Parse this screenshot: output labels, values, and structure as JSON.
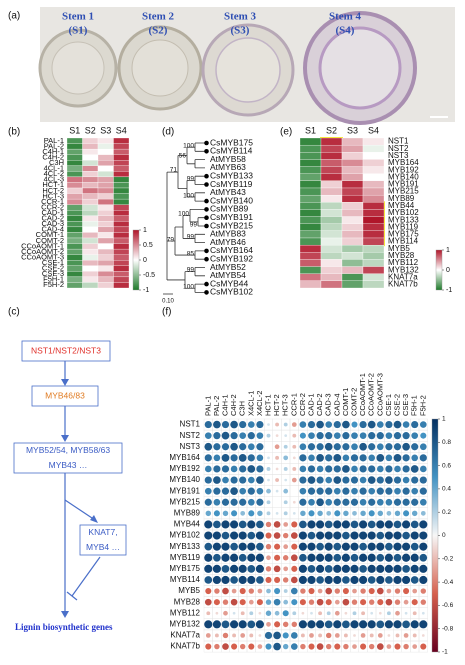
{
  "panel_labels": [
    "(a)",
    "(b)",
    "(c)",
    "(d)",
    "(e)",
    "(f)"
  ],
  "panel_a": {
    "stems": [
      {
        "name": "Stem 1",
        "code": "(S1)"
      },
      {
        "name": "Stem 2",
        "code": "(S2)"
      },
      {
        "name": "Stem 3",
        "code": "(S3)"
      },
      {
        "name": "Stem 4",
        "code": "(S4)"
      }
    ]
  },
  "tree": {
    "leaves": [
      {
        "name": "CsMYB175",
        "dot": true
      },
      {
        "name": "CsMYB114",
        "dot": true
      },
      {
        "name": "AtMYB58",
        "dot": false
      },
      {
        "name": "AtMYB63",
        "dot": false
      },
      {
        "name": "CsMYB133",
        "dot": true
      },
      {
        "name": "CsMYB119",
        "dot": true
      },
      {
        "name": "AtMYB43",
        "dot": false
      },
      {
        "name": "CsMYB140",
        "dot": true
      },
      {
        "name": "CsMYB89",
        "dot": true
      },
      {
        "name": "CsMYB191",
        "dot": true
      },
      {
        "name": "CsMYB215",
        "dot": true
      },
      {
        "name": "AtMYB83",
        "dot": false
      },
      {
        "name": "AtMYB46",
        "dot": false
      },
      {
        "name": "CsMYB164",
        "dot": true
      },
      {
        "name": "CsMYB192",
        "dot": true
      },
      {
        "name": "AtMYB52",
        "dot": false
      },
      {
        "name": "AtMYB54",
        "dot": false
      },
      {
        "name": "CsMYB44",
        "dot": true
      },
      {
        "name": "CsMYB102",
        "dot": true
      }
    ],
    "bootstrap": [
      "100",
      "56",
      "71",
      "99",
      "100",
      "100",
      "99",
      "99",
      "85",
      "79",
      "99",
      "100"
    ],
    "scale": "0.10"
  },
  "pathway": {
    "nodes": [
      {
        "lines": [
          "NST1/NST2/NST3"
        ],
        "color": "#e0302a"
      },
      {
        "lines": [
          "MYB46/83"
        ],
        "color": "#e07b22"
      },
      {
        "lines": [
          "MYB52/54, MYB58/63",
          "MYB43 …"
        ],
        "color": "#3a5bc4"
      },
      {
        "lines": [
          "KNAT7,",
          "MYB4 …"
        ],
        "color": "#3a5bc4"
      },
      {
        "lines": [
          "Lignin biosynthetic genes"
        ],
        "color": "#2233cc"
      }
    ]
  },
  "chart_data": [
    {
      "type": "heatmap",
      "columns": [
        "S1",
        "S2",
        "S3",
        "S4"
      ],
      "rows": [
        "PAL-1",
        "PAL-2",
        "C4H-1",
        "C4H-2",
        "C3H",
        "4CL-1",
        "4CL-2",
        "4CL-3",
        "HCT-1",
        "HCT-2",
        "HCT-3",
        "CCR-1",
        "CCR-2",
        "CAD-1",
        "CAD-2",
        "CAD-3",
        "CAD-4",
        "COMT-1",
        "COMT-2",
        "CCoAOMT-1",
        "CCoAOMT-2",
        "CCoAOMT-3",
        "CSE-1",
        "CSE-2",
        "CSE-3",
        "F5H-1",
        "F5H-2"
      ],
      "values": [
        [
          -0.8,
          0.2,
          0.1,
          0.9
        ],
        [
          -0.9,
          0.3,
          -0.1,
          0.8
        ],
        [
          -0.7,
          0.1,
          0.0,
          0.7
        ],
        [
          -0.8,
          0.0,
          0.3,
          0.9
        ],
        [
          -0.9,
          -0.2,
          0.4,
          0.8
        ],
        [
          -0.6,
          0.5,
          0.0,
          0.7
        ],
        [
          -0.8,
          0.2,
          -0.2,
          0.9
        ],
        [
          0.6,
          0.5,
          0.4,
          -0.9
        ],
        [
          0.5,
          0.3,
          0.4,
          -0.8
        ],
        [
          0.2,
          0.6,
          0.5,
          -0.9
        ],
        [
          0.4,
          0.3,
          0.2,
          -0.8
        ],
        [
          0.5,
          0.2,
          0.6,
          -0.9
        ],
        [
          -0.7,
          -0.2,
          0.1,
          0.8
        ],
        [
          -0.8,
          -0.3,
          0.2,
          0.9
        ],
        [
          -0.9,
          0.1,
          0.3,
          0.7
        ],
        [
          -0.8,
          -0.1,
          0.2,
          0.9
        ],
        [
          -0.9,
          0.0,
          0.4,
          0.8
        ],
        [
          -0.7,
          0.3,
          0.1,
          0.9
        ],
        [
          -0.6,
          -0.2,
          0.4,
          0.7
        ],
        [
          -0.8,
          0.2,
          0.0,
          0.9
        ],
        [
          -0.7,
          0.1,
          0.3,
          0.8
        ],
        [
          -0.9,
          -0.1,
          0.2,
          0.7
        ],
        [
          -0.8,
          0.3,
          0.4,
          0.8
        ],
        [
          -0.7,
          0.0,
          0.1,
          0.9
        ],
        [
          -0.9,
          0.2,
          0.5,
          0.7
        ],
        [
          -0.6,
          0.1,
          0.3,
          0.8
        ],
        [
          -0.7,
          -0.3,
          0.2,
          0.9
        ]
      ],
      "clim": [
        -1,
        1
      ],
      "cticks": [
        -1,
        -0.5,
        0,
        0.5,
        1
      ],
      "colors": [
        "#1e7a2a",
        "#ffffff",
        "#b0162a"
      ]
    },
    {
      "type": "heatmap",
      "columns": [
        "S1",
        "S2",
        "S3",
        "S4"
      ],
      "rows": [
        "NST1",
        "NST2",
        "NST3",
        "MYB164",
        "MYB192",
        "MYB140",
        "MYB191",
        "MYB215",
        "MYB89",
        "MYB44",
        "MYB102",
        "MYB133",
        "MYB119",
        "MYB175",
        "MYB114",
        "MYB5",
        "MYB28",
        "MYB112",
        "MYB132",
        "KNAT7a",
        "KNAT7b"
      ],
      "values": [
        [
          -0.9,
          0.9,
          0.3,
          0.1
        ],
        [
          -0.8,
          0.8,
          0.4,
          -0.1
        ],
        [
          -0.8,
          0.9,
          0.2,
          0.0
        ],
        [
          -0.9,
          0.7,
          0.5,
          0.2
        ],
        [
          -0.8,
          0.8,
          0.3,
          0.1
        ],
        [
          -0.7,
          0.9,
          0.4,
          0.0
        ],
        [
          -0.9,
          0.2,
          0.9,
          0.3
        ],
        [
          -0.8,
          0.3,
          0.8,
          0.4
        ],
        [
          -0.7,
          0.1,
          0.9,
          0.5
        ],
        [
          -0.8,
          -0.3,
          0.2,
          0.9
        ],
        [
          -0.9,
          -0.2,
          0.3,
          0.9
        ],
        [
          -0.8,
          -0.4,
          0.1,
          1.0
        ],
        [
          -0.9,
          -0.3,
          0.2,
          0.9
        ],
        [
          -0.7,
          -0.2,
          0.3,
          0.9
        ],
        [
          -0.8,
          -0.1,
          0.2,
          0.8
        ],
        [
          0.9,
          -0.2,
          -0.4,
          -0.3
        ],
        [
          0.8,
          -0.3,
          -0.2,
          -0.4
        ],
        [
          0.7,
          0.1,
          -0.5,
          -0.3
        ],
        [
          -0.8,
          0.2,
          0.3,
          0.8
        ],
        [
          0.6,
          0.3,
          -0.8,
          -0.2
        ],
        [
          0.3,
          0.6,
          -0.7,
          -0.3
        ]
      ],
      "clim": [
        -1,
        1
      ],
      "cticks": [
        -1,
        0,
        1
      ],
      "colors": [
        "#1e7a2a",
        "#ffffff",
        "#b0162a"
      ]
    },
    {
      "type": "corrplot",
      "columns": [
        "PAL-1",
        "PAL-2",
        "C4H-1",
        "C4H-2",
        "C3H",
        "X4CL-1",
        "X4CL-2",
        "HCT-1",
        "HCT-2",
        "HCT-3",
        "CCR-1",
        "CCR-2",
        "CAD-1",
        "CAD-2",
        "CAD-3",
        "CAD-4",
        "COMT-1",
        "COMT-2",
        "CCoAOMT-1",
        "CCoAOMT-2",
        "CCoAOMT-3",
        "CSE-1",
        "CSE-2",
        "CSE-3",
        "F5H-1",
        "F5H-2"
      ],
      "rows": [
        "NST1",
        "NST2",
        "NST3",
        "MYB164",
        "MYB192",
        "MYB140",
        "MYB191",
        "MYB215",
        "MYB89",
        "MYB44",
        "MYB102",
        "MYB133",
        "MYB119",
        "MYB175",
        "MYB114",
        "MYB5",
        "MYB28",
        "MYB112",
        "MYB132",
        "KNAT7a",
        "KNAT7b"
      ],
      "values": [
        [
          0.7,
          0.8,
          0.7,
          0.8,
          0.7,
          0.6,
          0.7,
          0.1,
          -0.2,
          0.2,
          -0.3,
          0.6,
          0.7,
          0.8,
          0.6,
          0.7,
          0.8,
          0.5,
          0.7,
          0.8,
          0.6,
          0.7,
          0.8,
          0.6,
          0.7,
          0.6
        ],
        [
          0.6,
          0.7,
          0.8,
          0.7,
          0.6,
          0.7,
          0.6,
          0.2,
          -0.1,
          0.1,
          -0.2,
          0.5,
          0.6,
          0.7,
          0.7,
          0.6,
          0.7,
          0.6,
          0.6,
          0.7,
          0.7,
          0.6,
          0.7,
          0.7,
          0.6,
          0.5
        ],
        [
          0.8,
          0.7,
          0.7,
          0.8,
          0.7,
          0.6,
          0.7,
          0.0,
          -0.3,
          0.2,
          -0.2,
          0.6,
          0.7,
          0.7,
          0.8,
          0.7,
          0.7,
          0.6,
          0.8,
          0.7,
          0.6,
          0.7,
          0.7,
          0.8,
          0.7,
          0.6
        ],
        [
          0.7,
          0.6,
          0.8,
          0.7,
          0.8,
          0.7,
          0.6,
          0.1,
          -0.2,
          0.3,
          -0.1,
          0.7,
          0.6,
          0.8,
          0.7,
          0.8,
          0.6,
          0.7,
          0.7,
          0.6,
          0.8,
          0.6,
          0.8,
          0.7,
          0.6,
          0.7
        ],
        [
          0.6,
          0.7,
          0.7,
          0.6,
          0.7,
          0.8,
          0.7,
          0.2,
          -0.1,
          0.2,
          -0.2,
          0.6,
          0.7,
          0.6,
          0.7,
          0.7,
          0.8,
          0.6,
          0.7,
          0.7,
          0.6,
          0.7,
          0.6,
          0.7,
          0.8,
          0.6
        ],
        [
          0.7,
          0.8,
          0.6,
          0.7,
          0.7,
          0.6,
          0.8,
          0.1,
          -0.2,
          0.1,
          -0.3,
          0.7,
          0.8,
          0.7,
          0.6,
          0.8,
          0.7,
          0.7,
          0.6,
          0.8,
          0.7,
          0.8,
          0.7,
          0.6,
          0.7,
          0.7
        ],
        [
          0.6,
          0.7,
          0.7,
          0.8,
          0.6,
          0.7,
          0.6,
          0.3,
          0.1,
          0.3,
          0.0,
          0.6,
          0.7,
          0.7,
          0.7,
          0.6,
          0.7,
          0.6,
          0.7,
          0.6,
          0.7,
          0.7,
          0.6,
          0.7,
          0.6,
          0.7
        ],
        [
          0.7,
          0.6,
          0.7,
          0.7,
          0.7,
          0.6,
          0.7,
          0.2,
          0.0,
          0.2,
          -0.1,
          0.7,
          0.6,
          0.8,
          0.6,
          0.7,
          0.7,
          0.7,
          0.6,
          0.7,
          0.6,
          0.6,
          0.7,
          0.7,
          0.7,
          0.6
        ],
        [
          0.4,
          0.5,
          0.4,
          0.5,
          0.3,
          0.5,
          0.4,
          0.2,
          0.1,
          0.2,
          0.1,
          0.4,
          0.5,
          0.4,
          0.3,
          0.5,
          0.4,
          0.3,
          0.4,
          0.5,
          0.4,
          0.3,
          0.4,
          0.5,
          0.4,
          0.3
        ],
        [
          0.9,
          0.8,
          0.9,
          0.9,
          0.8,
          0.9,
          0.8,
          -0.4,
          -0.6,
          -0.3,
          -0.5,
          0.8,
          0.9,
          0.9,
          0.8,
          0.9,
          0.9,
          0.8,
          0.9,
          0.8,
          0.9,
          0.9,
          0.8,
          0.9,
          0.8,
          0.9
        ],
        [
          0.9,
          0.9,
          0.8,
          0.9,
          0.9,
          0.8,
          0.9,
          -0.5,
          -0.6,
          -0.4,
          -0.6,
          0.9,
          0.8,
          0.9,
          0.9,
          0.9,
          0.8,
          0.9,
          0.9,
          0.9,
          0.8,
          0.9,
          0.9,
          0.8,
          0.9,
          0.9
        ],
        [
          0.8,
          0.9,
          0.9,
          0.8,
          0.9,
          0.9,
          0.8,
          -0.4,
          -0.5,
          -0.3,
          -0.5,
          0.9,
          0.9,
          0.8,
          0.9,
          0.8,
          0.9,
          0.9,
          0.8,
          0.9,
          0.9,
          0.8,
          0.9,
          0.9,
          0.8,
          0.9
        ],
        [
          0.9,
          0.8,
          0.9,
          0.9,
          0.8,
          0.9,
          0.9,
          -0.3,
          -0.5,
          -0.4,
          -0.6,
          0.8,
          0.9,
          0.9,
          0.9,
          0.8,
          0.9,
          0.8,
          0.9,
          0.9,
          0.8,
          0.9,
          0.8,
          0.9,
          0.9,
          0.8
        ],
        [
          0.9,
          0.9,
          0.8,
          0.9,
          0.9,
          0.8,
          0.9,
          -0.4,
          -0.6,
          -0.3,
          -0.5,
          0.9,
          0.8,
          0.9,
          0.8,
          0.9,
          0.9,
          0.9,
          0.8,
          0.9,
          0.9,
          0.9,
          0.9,
          0.8,
          0.9,
          0.9
        ],
        [
          0.8,
          0.9,
          0.9,
          0.8,
          0.9,
          0.9,
          0.8,
          -0.5,
          -0.5,
          -0.4,
          -0.6,
          0.9,
          0.9,
          0.8,
          0.9,
          0.9,
          0.8,
          0.9,
          0.9,
          0.8,
          0.9,
          0.8,
          0.9,
          0.9,
          0.8,
          0.9
        ],
        [
          -0.5,
          -0.4,
          -0.6,
          -0.3,
          -0.5,
          -0.4,
          -0.3,
          0.3,
          0.5,
          0.2,
          0.6,
          -0.4,
          -0.5,
          -0.3,
          -0.6,
          -0.4,
          -0.5,
          -0.3,
          -0.4,
          -0.5,
          -0.6,
          -0.3,
          -0.4,
          -0.5,
          -0.3,
          -0.4
        ],
        [
          -0.6,
          -0.5,
          -0.4,
          -0.6,
          -0.5,
          -0.3,
          -0.5,
          0.4,
          0.6,
          0.3,
          0.5,
          -0.5,
          -0.4,
          -0.6,
          -0.5,
          -0.3,
          -0.6,
          -0.4,
          -0.5,
          -0.4,
          -0.5,
          -0.6,
          -0.4,
          -0.3,
          -0.5,
          -0.4
        ],
        [
          -0.2,
          -0.1,
          -0.3,
          0.1,
          -0.2,
          0.2,
          -0.1,
          0.4,
          0.3,
          0.5,
          0.2,
          -0.1,
          0.1,
          -0.2,
          0.2,
          -0.3,
          -0.1,
          0.2,
          -0.2,
          0.1,
          -0.1,
          0.2,
          -0.3,
          0.1,
          -0.2,
          0.1
        ],
        [
          0.9,
          0.9,
          0.8,
          0.9,
          0.9,
          0.8,
          0.9,
          -0.3,
          -0.5,
          -0.4,
          -0.4,
          0.9,
          0.9,
          0.9,
          0.8,
          0.9,
          0.8,
          0.9,
          0.9,
          0.9,
          0.8,
          0.9,
          0.9,
          0.8,
          0.9,
          0.9
        ],
        [
          -0.3,
          -0.2,
          -0.4,
          -0.2,
          -0.3,
          -0.2,
          -0.1,
          0.7,
          0.8,
          0.5,
          0.6,
          -0.2,
          -0.3,
          -0.2,
          -0.4,
          -0.3,
          -0.2,
          -0.1,
          -0.3,
          -0.2,
          -0.3,
          -0.1,
          -0.2,
          -0.3,
          -0.2,
          -0.1
        ],
        [
          -0.5,
          -0.4,
          -0.6,
          -0.5,
          -0.4,
          -0.5,
          -0.3,
          0.5,
          0.8,
          0.4,
          0.6,
          -0.4,
          -0.5,
          -0.6,
          -0.4,
          -0.5,
          -0.4,
          -0.3,
          -0.5,
          -0.4,
          -0.6,
          -0.3,
          -0.5,
          -0.4,
          -0.3,
          -0.5
        ]
      ],
      "clim": [
        -1,
        1
      ],
      "cticks": [
        -1,
        -0.8,
        -0.6,
        -0.4,
        -0.2,
        0,
        0.2,
        0.4,
        0.6,
        0.8,
        1
      ],
      "colors": [
        "#67001f",
        "#d6604d",
        "#f7f7f7",
        "#4393c3",
        "#053061"
      ]
    }
  ]
}
